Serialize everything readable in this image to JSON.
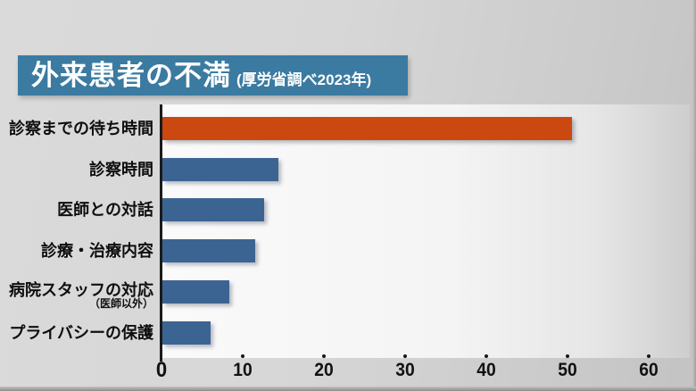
{
  "title": {
    "main": "外来患者の不満",
    "sub": "(厚労省調べ2023年)"
  },
  "colors": {
    "title_bg": "#3b7ba1",
    "title_text": "#ffffff",
    "highlight_bar": "#cb4811",
    "bar": "#3c6493",
    "axis": "#1b1b1b",
    "label_text": "#0e0e0e",
    "background": "#d5d5d5",
    "plot_background": "#f5f5f5"
  },
  "chart_data": {
    "type": "bar",
    "orientation": "horizontal",
    "title": "外来患者の不満",
    "source_note": "(厚労省調べ2023年)",
    "categories": [
      "診察までの待ち時間",
      "診察時間",
      "医師との対話",
      "診療・治療内容",
      "病院スタッフの対応",
      "プライバシーの保護"
    ],
    "sub_labels": [
      "",
      "",
      "",
      "",
      "（医師以外）",
      ""
    ],
    "values": [
      50.4,
      14.3,
      12.5,
      11.4,
      8.2,
      5.9
    ],
    "highlight_index": 0,
    "xticks": [
      "0",
      "10",
      "20",
      "30",
      "40",
      "50",
      "60"
    ],
    "xtick_values": [
      0,
      10,
      20,
      30,
      40,
      50,
      60
    ],
    "xlim": [
      0,
      65
    ],
    "xlabel": "",
    "ylabel": "",
    "grid": false,
    "legend": false
  }
}
